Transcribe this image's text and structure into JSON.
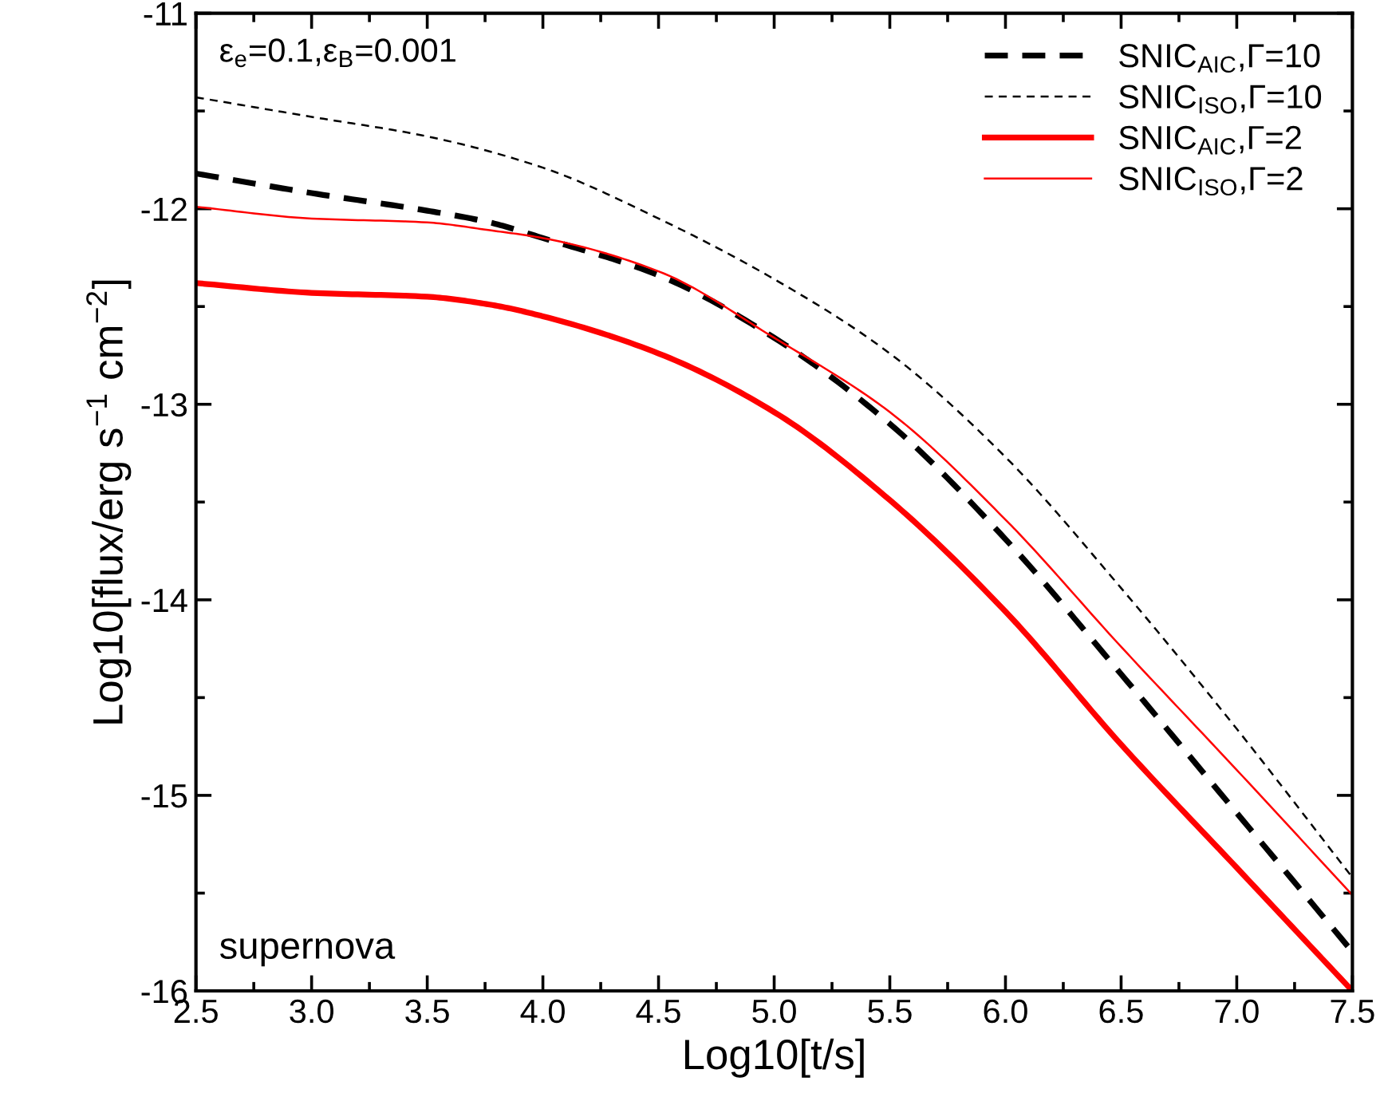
{
  "chart_data": {
    "type": "line",
    "xlabel": "Log10[t/s]",
    "ylabel": "Log10[flux/erg s$^{−1}$ cm$^{−2}$]",
    "xlim": [
      2.5,
      7.5
    ],
    "ylim": [
      -16,
      -11
    ],
    "xticks": [
      2.5,
      {
        "value": 3,
        "label": "3.0"
      },
      3.5,
      {
        "value": 4,
        "label": "4.0"
      },
      4.5,
      {
        "value": 5,
        "label": "5.0"
      },
      5.5,
      {
        "value": 6,
        "label": "6.0"
      },
      6.5,
      {
        "value": 7,
        "label": "7.0"
      },
      7.5
    ],
    "yticks": [
      -16,
      -15,
      -14,
      -13,
      -12,
      -11
    ],
    "grid": false,
    "legend": "top right",
    "annotations": [
      "ε$_{e}$=0.1,ε$_{B}$=0.001",
      "supernova"
    ],
    "series": [
      {
        "name": "SNIC$_{AIC}$,Γ=10",
        "color": "#000000",
        "line_style": "dashed",
        "x": [
          2.5,
          3.0,
          3.5,
          3.77,
          4.0,
          4.5,
          5.0,
          5.5,
          6.0,
          6.5,
          7.0,
          7.5
        ],
        "values": [
          -11.82,
          -11.92,
          -12.01,
          -12.07,
          -12.15,
          -12.34,
          -12.66,
          -13.1,
          -13.69,
          -14.38,
          -15.09,
          -15.8
        ]
      },
      {
        "name": "SNIC$_{ISO}$,Γ=10",
        "color": "#000000",
        "line_style": "dashed",
        "x": [
          2.5,
          3.0,
          3.5,
          4.0,
          4.5,
          5.0,
          5.5,
          6.0,
          6.5,
          7.0,
          7.5
        ],
        "values": [
          -11.43,
          -11.53,
          -11.63,
          -11.79,
          -12.05,
          -12.36,
          -12.74,
          -13.27,
          -13.94,
          -14.66,
          -15.42
        ]
      },
      {
        "name": "SNIC$_{AIC}$,Γ=2",
        "color": "#ff0000",
        "line_style": "solid",
        "x": [
          2.5,
          3.0,
          3.5,
          3.77,
          4.0,
          4.5,
          5.0,
          5.5,
          6.0,
          6.5,
          7.0,
          7.5
        ],
        "values": [
          -12.38,
          -12.43,
          -12.45,
          -12.49,
          -12.55,
          -12.74,
          -13.04,
          -13.49,
          -14.06,
          -14.74,
          -15.37,
          -16.0
        ]
      },
      {
        "name": "SNIC$_{ISO}$,Γ=2",
        "color": "#ff0000",
        "line_style": "solid",
        "x": [
          2.5,
          3.0,
          3.5,
          3.77,
          4.0,
          4.5,
          5.0,
          5.5,
          6.0,
          6.5,
          7.0,
          7.5
        ],
        "values": [
          -11.99,
          -12.05,
          -12.07,
          -12.11,
          -12.15,
          -12.32,
          -12.66,
          -13.04,
          -13.59,
          -14.24,
          -14.87,
          -15.51
        ]
      }
    ]
  }
}
